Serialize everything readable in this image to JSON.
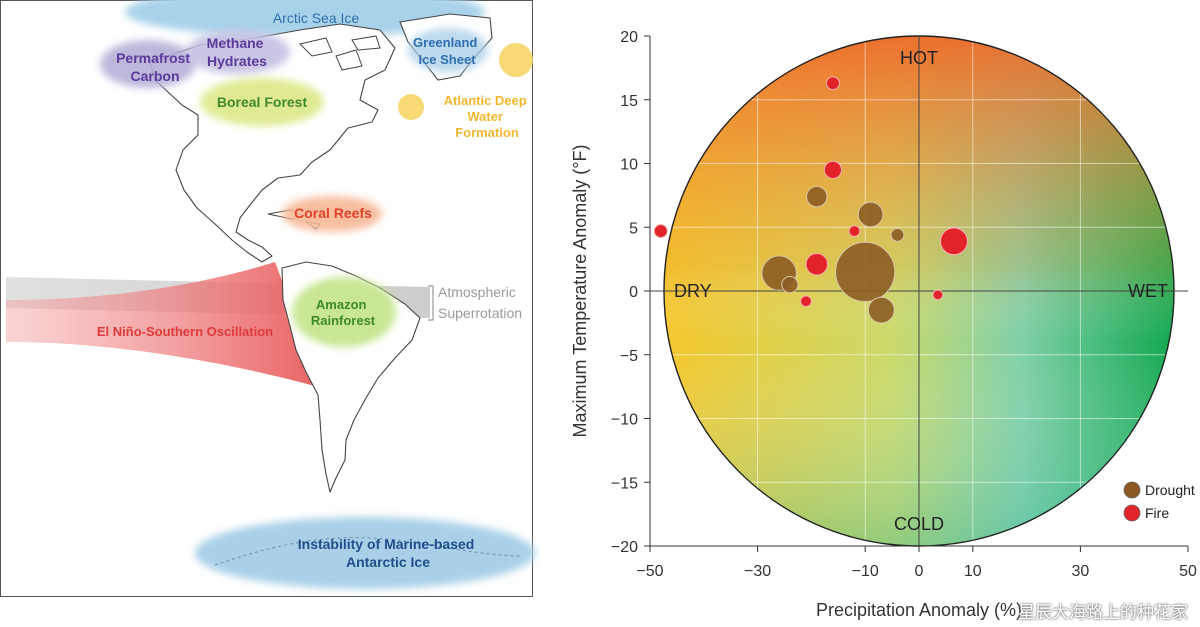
{
  "map": {
    "labels": {
      "arctic_sea_ice": "Arctic Sea Ice",
      "greenland_ice_sheet": [
        "Greenland",
        "Ice Sheet"
      ],
      "permafrost_carbon": [
        "Permafrost",
        "Carbon"
      ],
      "methane_hydrates": [
        "Methane",
        "Hydrates"
      ],
      "boreal_forest": "Boreal Forest",
      "atlantic_deep_water": [
        "Atlantic Deep",
        "Water",
        "Formation"
      ],
      "coral_reefs": "Coral Reefs",
      "amazon_rainforest": [
        "Amazon",
        "Rainforest"
      ],
      "atmospheric_superrotation": [
        "Atmospheric",
        "Superrotation"
      ],
      "enso": "El Niño-Southern Oscillation",
      "antarctic_ice": [
        "Instability of Marine-based",
        "Antarctic Ice"
      ]
    },
    "colors": {
      "ice_blue": "#9ecbe6",
      "ice_text": "#2f6fb2",
      "purple": "#b9b3da",
      "purple_text": "#5b3a9c",
      "green": "#d6e77a",
      "green_text": "#3f8a2a",
      "yellow": "#f6d766",
      "yellow_text": "#f2b72e",
      "coral": "#f7b48a",
      "coral_text": "#e2422a",
      "enso": "#ef6f6f",
      "enso_text": "#e03a3a",
      "gray": "#cfcfcf",
      "gray_text": "#9a9a9a"
    }
  },
  "chart_data": {
    "type": "scatter",
    "xlabel": "Precipitation Anomaly (%)",
    "ylabel": "Maximum Temperature Anomaly (°F)",
    "xlim": [
      -50,
      50
    ],
    "ylim": [
      -20,
      20
    ],
    "xticks": [
      -50,
      -30,
      -10,
      0,
      10,
      30,
      50
    ],
    "yticks": [
      20,
      15,
      10,
      5,
      0,
      -5,
      -10,
      -15,
      -20
    ],
    "grid": true,
    "quadrant_labels": {
      "top": "HOT",
      "bottom": "COLD",
      "left": "DRY",
      "right": "WET"
    },
    "legend": {
      "position": "bottom-right",
      "entries": [
        {
          "name": "Drought",
          "color": "#8a5a22"
        },
        {
          "name": "Fire",
          "color": "#e3232a"
        }
      ]
    },
    "series": [
      {
        "name": "Fire",
        "color": "#e3232a",
        "points": [
          {
            "x": -16,
            "y": 16.3,
            "r": 1.2
          },
          {
            "x": -48,
            "y": 4.7,
            "r": 1.2
          },
          {
            "x": -16,
            "y": 9.5,
            "r": 1.6
          },
          {
            "x": 6.5,
            "y": 3.9,
            "r": 2.5
          },
          {
            "x": -19,
            "y": 2.1,
            "r": 2.0
          },
          {
            "x": 3.5,
            "y": -0.3,
            "r": 0.9
          },
          {
            "x": -21,
            "y": -0.8,
            "r": 1.0
          },
          {
            "x": -12,
            "y": 4.7,
            "r": 1.0
          }
        ]
      },
      {
        "name": "Drought",
        "color": "#8a5a22",
        "points": [
          {
            "x": -10,
            "y": 1.5,
            "r": 5.5
          },
          {
            "x": -26,
            "y": 1.4,
            "r": 3.2
          },
          {
            "x": -19,
            "y": 7.4,
            "r": 1.9
          },
          {
            "x": -9,
            "y": 6.0,
            "r": 2.3
          },
          {
            "x": -7,
            "y": -1.5,
            "r": 2.4
          },
          {
            "x": -4,
            "y": 4.4,
            "r": 1.2
          },
          {
            "x": -24,
            "y": 0.5,
            "r": 1.5
          }
        ]
      }
    ]
  },
  "watermark": "星辰大海路上的种花家"
}
